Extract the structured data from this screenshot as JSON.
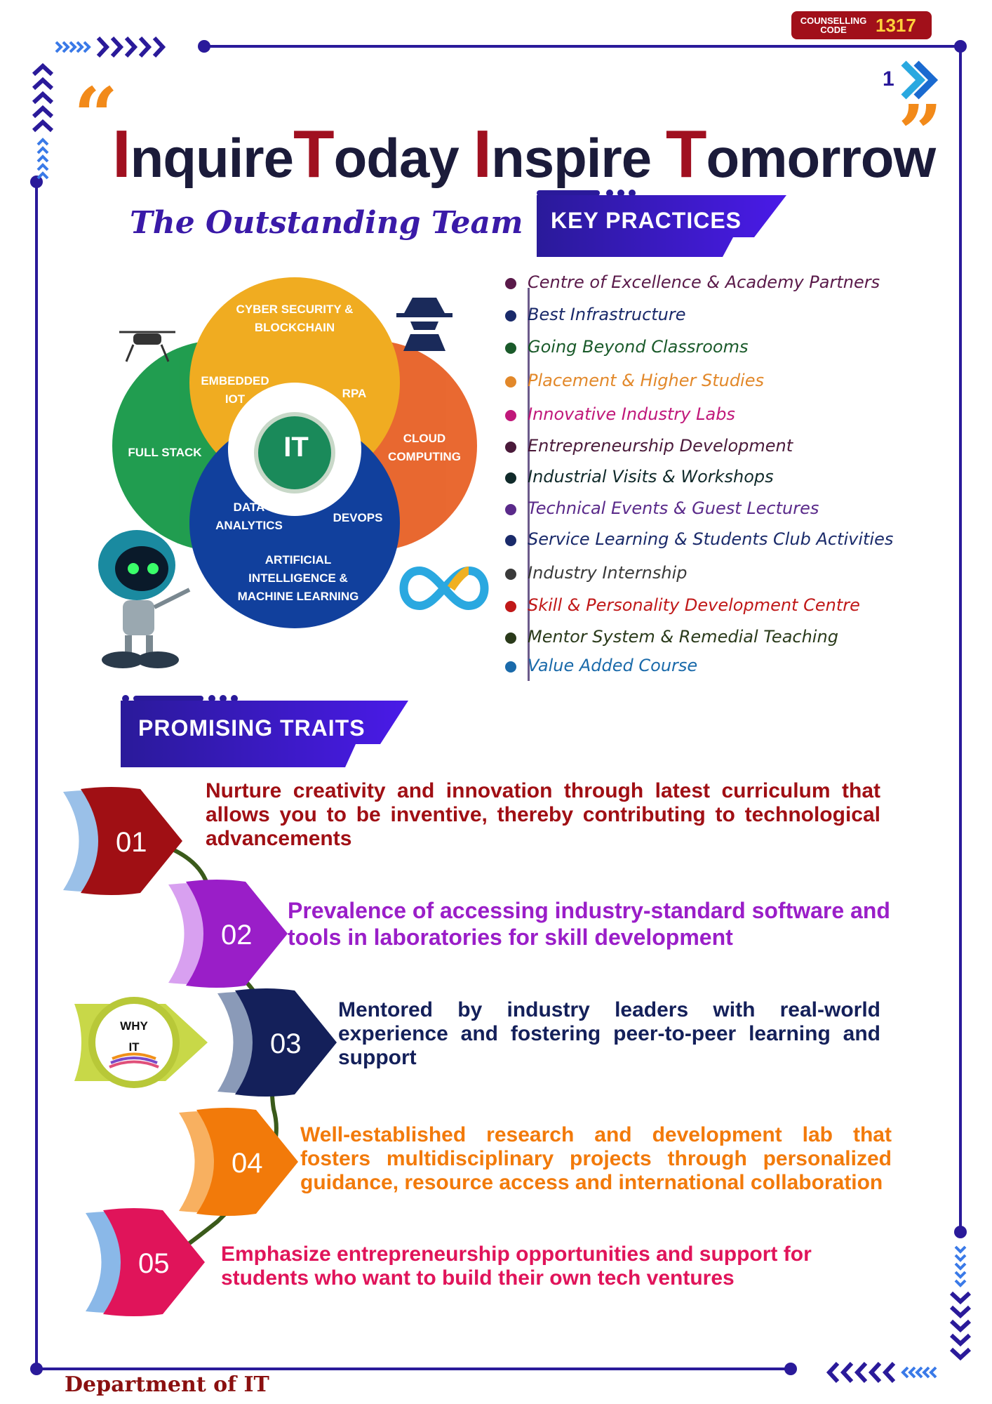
{
  "badge": {
    "label": "COUNSELLING CODE",
    "code": "1317"
  },
  "page_number": "1",
  "title": {
    "w1_cap": "I",
    "w1_rest": "nquire",
    "w2_cap": "T",
    "w2_rest": "oday",
    "w3_cap": "I",
    "w3_rest": "nspire",
    "w4_cap": "T",
    "w4_rest": "omorrow"
  },
  "team_heading": "The Outstanding Team",
  "venn": {
    "center": "IT",
    "segments": [
      "CYBER SECURITY & BLOCKCHAIN",
      "EMBEDDED IOT",
      "RPA",
      "FULL STACK",
      "CLOUD COMPUTING",
      "DATA ANALYTICS",
      "DEVOPS",
      "ARTIFICIAL INTELLIGENCE & MACHINE LEARNING"
    ]
  },
  "key_practices": {
    "heading": "KEY PRACTICES",
    "items": [
      {
        "label": "Centre of Excellence & Academy Partners",
        "color": "#5a1a4a"
      },
      {
        "label": "Best Infrastructure",
        "color": "#1a2a6a"
      },
      {
        "label": "Going Beyond Classrooms",
        "color": "#1a5a2a"
      },
      {
        "label": "Placement & Higher Studies",
        "color": "#e2882a"
      },
      {
        "label": "Innovative Industry Labs",
        "color": "#c0187a"
      },
      {
        "label": "Entrepreneurship Development",
        "color": "#4a1a3a"
      },
      {
        "label": "Industrial Visits & Workshops",
        "color": "#102a2a"
      },
      {
        "label": "Technical Events & Guest Lectures",
        "color": "#5a2a8a"
      },
      {
        "label": "Service Learning & Students Club Activities",
        "color": "#1a2a6a"
      },
      {
        "label": "Industry Internship",
        "color": "#3a3a3a"
      },
      {
        "label": "Skill & Personality Development Centre",
        "color": "#c01818"
      },
      {
        "label": "Mentor System & Remedial Teaching",
        "color": "#2a3a1a"
      },
      {
        "label": "Value Added Course",
        "color": "#1a6aaa"
      }
    ]
  },
  "traits": {
    "heading": "PROMISING TRAITS",
    "why_label_1": "WHY",
    "why_label_2": "IT",
    "items": [
      {
        "num": "01",
        "text": "Nurture creativity and innovation through latest curriculum that allows you to be inventive, thereby contributing to technological advancements",
        "color": "#a00f14"
      },
      {
        "num": "02",
        "text": "Prevalence of accessing industry-standard software and tools in laboratories for skill development",
        "color": "#9a1ec8"
      },
      {
        "num": "03",
        "text": "Mentored by industry leaders with real-world experience and fostering peer-to-peer learning and support",
        "color": "#14205a"
      },
      {
        "num": "04",
        "text": "Well-established research and development lab that fosters multidisciplinary projects through personalized guidance, resource access and international collaboration",
        "color": "#f27a0a"
      },
      {
        "num": "05",
        "text": "Emphasize entrepreneurship opportunities and support for students who want to build their own tech ventures",
        "color": "#e0145a"
      }
    ]
  },
  "footer": "Department of IT",
  "colors": {
    "frame": "#2a1a9a",
    "title_dark": "#1b1b3a",
    "title_accent": "#a01020",
    "ribbon": "#3a1ac8"
  }
}
